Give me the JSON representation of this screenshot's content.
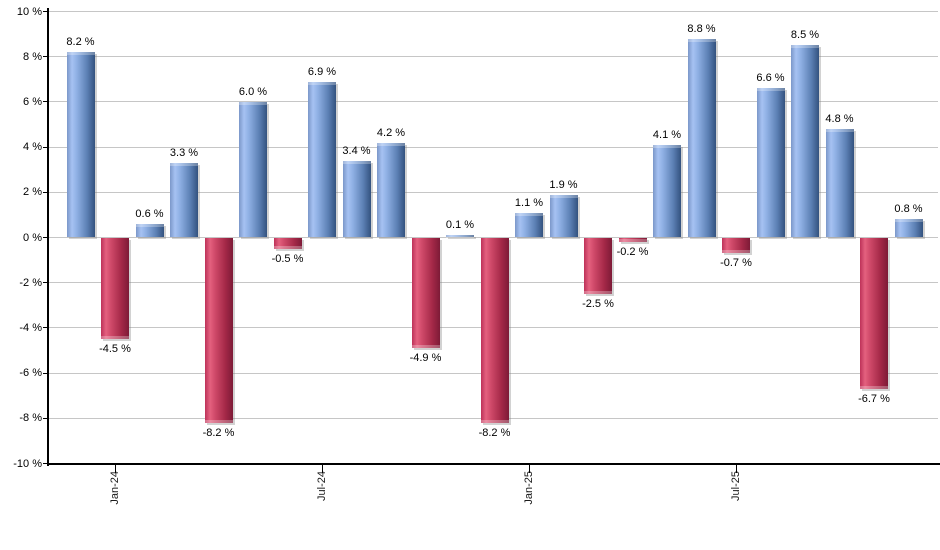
{
  "chart_data": {
    "type": "bar",
    "title": "",
    "xlabel": "",
    "ylabel": "",
    "unit": "%",
    "ylim": [
      -10,
      10
    ],
    "y_tick_step": 2,
    "grid": "horizontal",
    "legend": "none",
    "values": [
      8.2,
      -4.5,
      0.6,
      3.3,
      -8.2,
      6.0,
      -0.5,
      6.9,
      3.4,
      4.2,
      -4.9,
      0.1,
      -8.2,
      1.1,
      1.9,
      -2.5,
      -0.2,
      4.1,
      8.8,
      -0.7,
      6.6,
      8.5,
      4.8,
      -6.7,
      0.8
    ],
    "bar_labels": [
      "8.2 %",
      "-4.5 %",
      "0.6 %",
      "3.3 %",
      "-8.2 %",
      "6.0 %",
      "-0.5 %",
      "6.9 %",
      "3.4 %",
      "4.2 %",
      "-4.9 %",
      "0.1 %",
      "-8.2 %",
      "1.1 %",
      "1.9 %",
      "-2.5 %",
      "-0.2 %",
      "4.1 %",
      "8.8 %",
      "-0.7 %",
      "6.6 %",
      "8.5 %",
      "4.8 %",
      "-6.7 %",
      "0.8 %"
    ],
    "y_tick_labels": [
      "10 %",
      "8 %",
      "6 %",
      "4 %",
      "2 %",
      "0 %",
      "-2 %",
      "-4 %",
      "-6 %",
      "-8 %",
      "-10 %"
    ],
    "x_tick_labels": [
      {
        "label": "Jan-24",
        "bar_index": 1
      },
      {
        "label": "Jul-24",
        "bar_index": 7
      },
      {
        "label": "Jan-25",
        "bar_index": 13
      },
      {
        "label": "Jul-25",
        "bar_index": 19
      }
    ],
    "colors": {
      "positive_bar_gradient": [
        "#7b97c9",
        "#a6c2f2",
        "#8fb0e4",
        "#5c80b4",
        "#33527f"
      ],
      "negative_bar_gradient": [
        "#bd3259",
        "#e4617f",
        "#d04a6a",
        "#a52948",
        "#7d1a37"
      ],
      "gridline": "#c6c6c6",
      "axis": "#000000",
      "label_text": "#000000",
      "background": "#ffffff"
    }
  }
}
